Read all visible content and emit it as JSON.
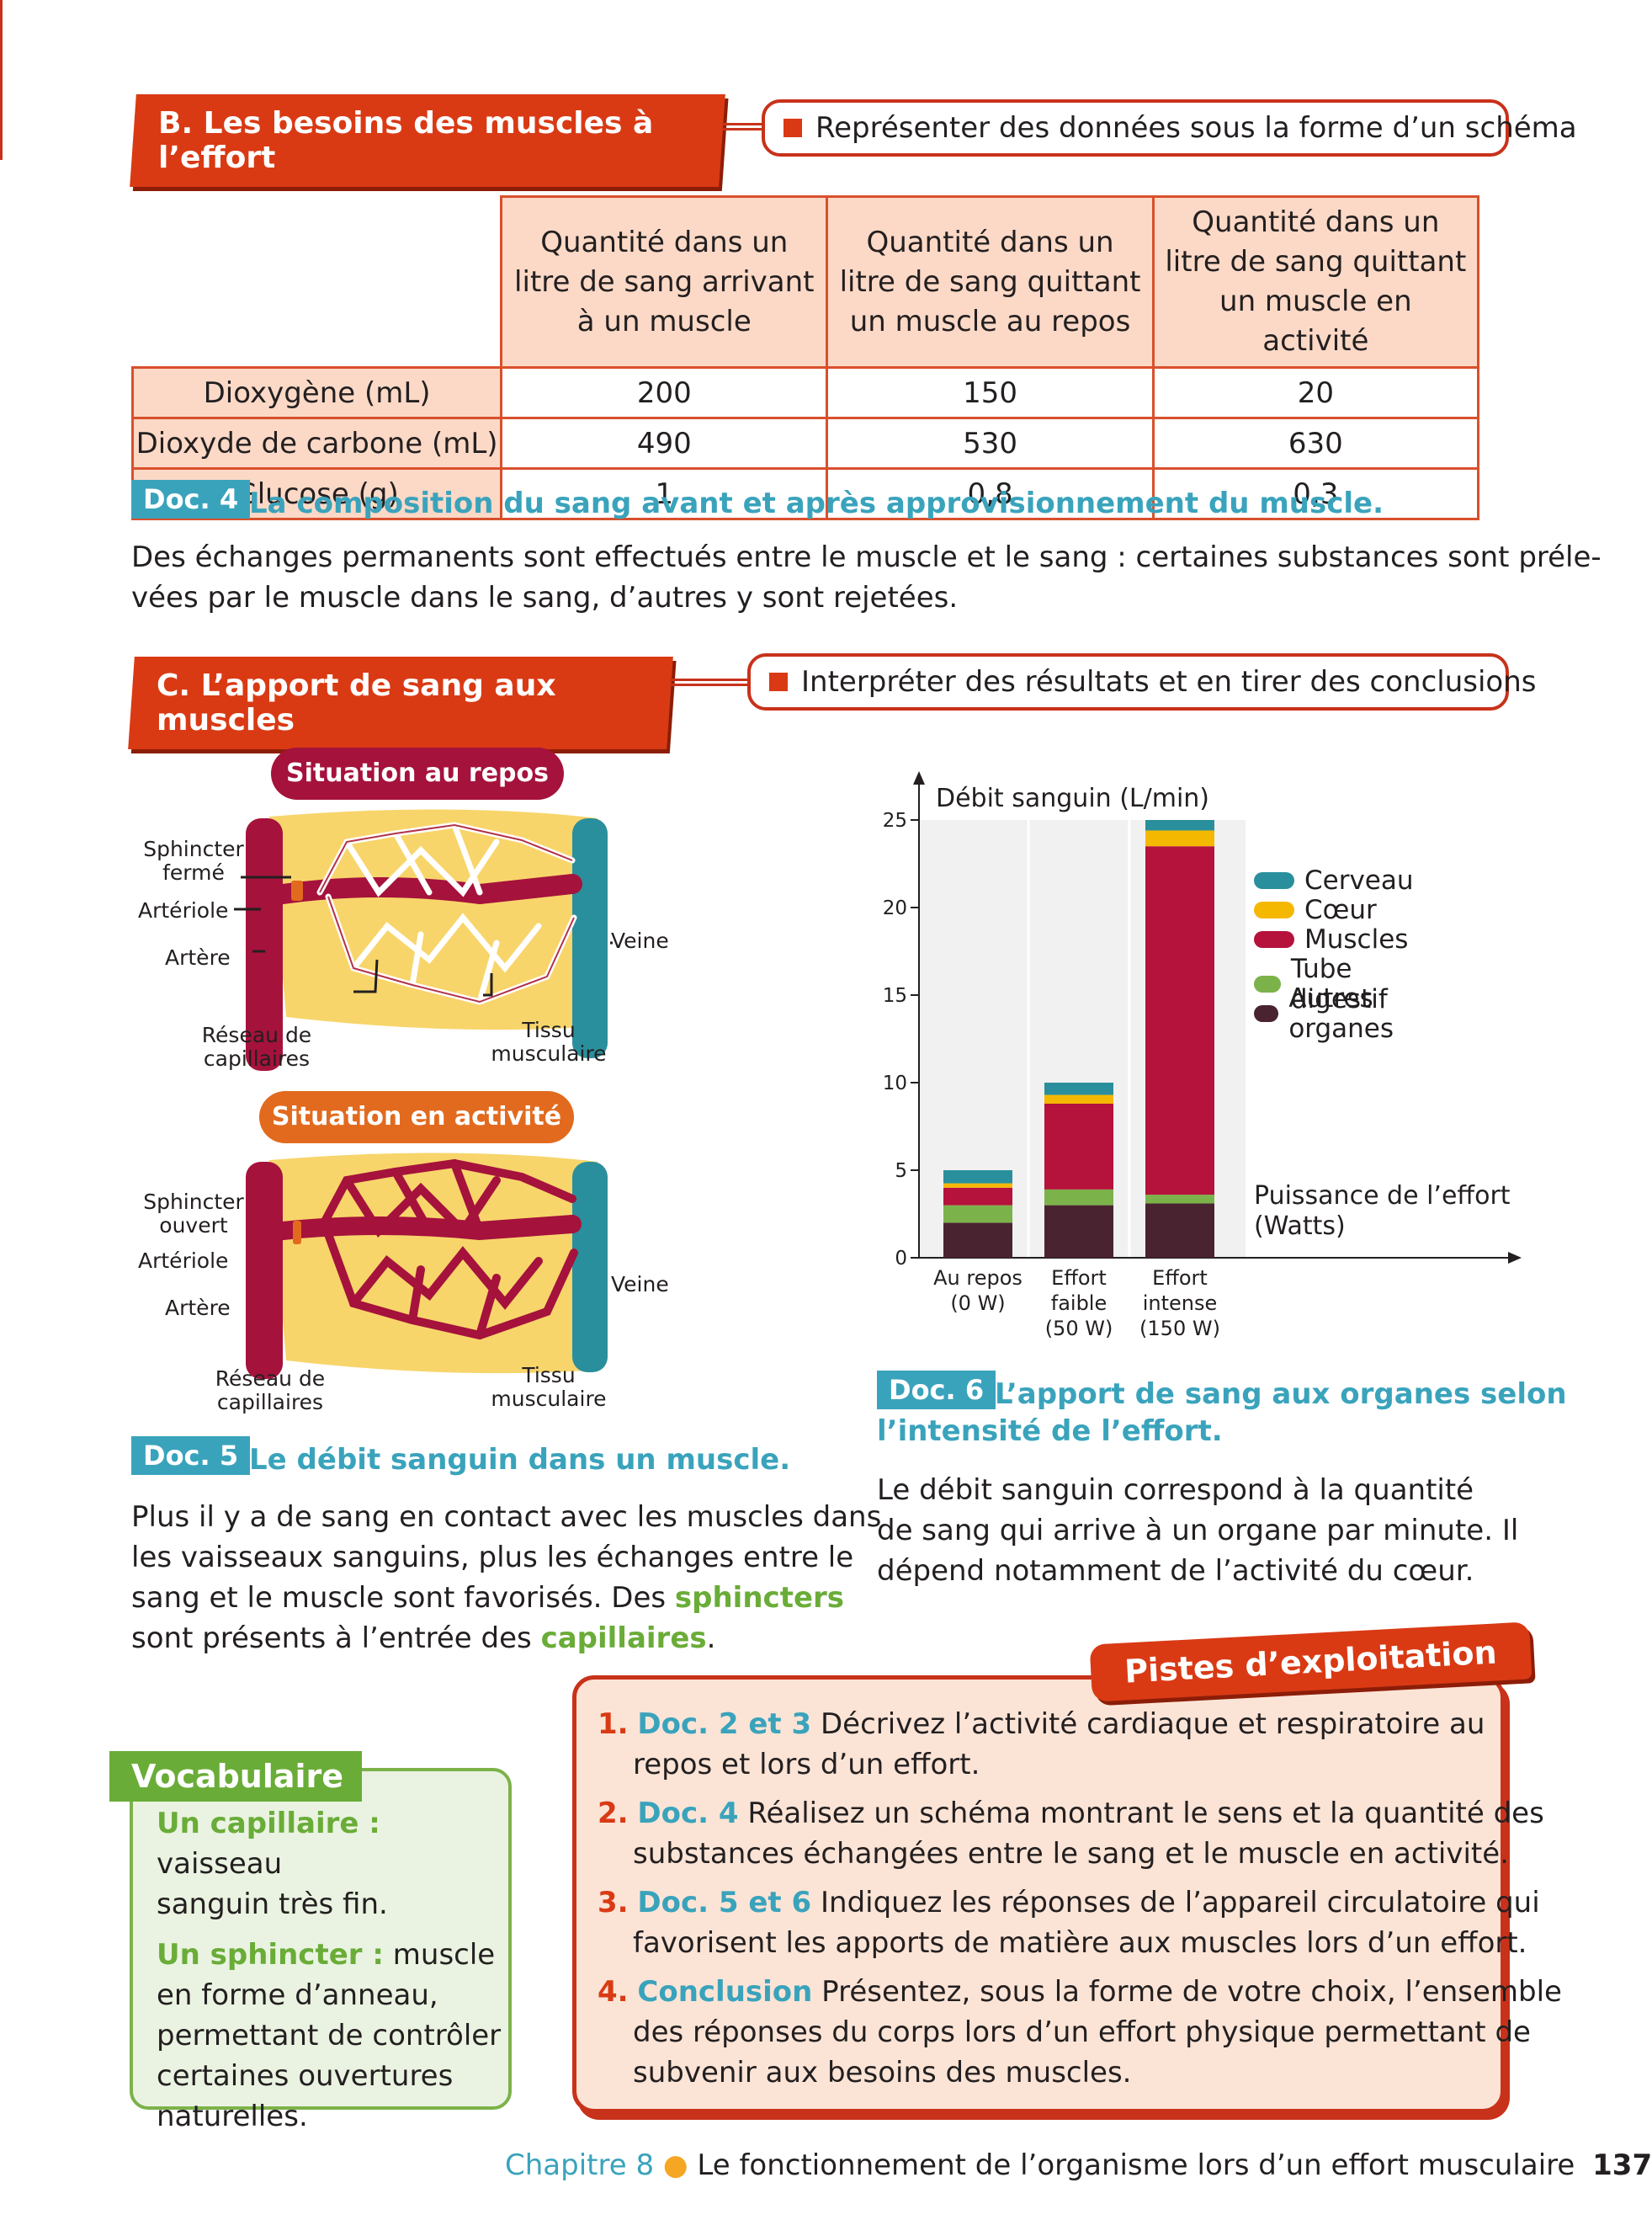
{
  "sectionB": {
    "title": "B. Les besoins des muscles à l’effort",
    "skill": "Représenter des données sous la forme d’un schéma"
  },
  "table": {
    "headers": [
      "Quantité dans un litre de sang arrivant à un muscle",
      "Quantité dans un litre de sang quittant un muscle au repos",
      "Quantité dans un litre de sang quittant un muscle en activité"
    ],
    "rows": [
      {
        "label": "Dioxygène (mL)",
        "values": [
          "200",
          "150",
          "20"
        ]
      },
      {
        "label": "Dioxyde de carbone (mL)",
        "values": [
          "490",
          "530",
          "630"
        ]
      },
      {
        "label": "Glucose (g)",
        "values": [
          "1",
          "0,8",
          "0,3"
        ]
      }
    ]
  },
  "doc4": {
    "tag": "Doc. 4",
    "caption": "La composition du sang avant et après approvisionnement du muscle.",
    "text_line1": "Des échanges permanents sont effectués entre le muscle et le sang : certaines substances sont préle-",
    "text_line2": "vées par le muscle dans le sang, d’autres y sont rejetées."
  },
  "sectionC": {
    "title": "C. L’apport de sang aux muscles",
    "skill": "Interpréter des résultats et en tirer des conclusions"
  },
  "diagram": {
    "rest_title": "Situation au repos",
    "active_title": "Situation en activité",
    "sphincter_closed": "Sphincter fermé",
    "sphincter_open": "Sphincter ouvert",
    "arteriole": "Artériole",
    "artery": "Artère",
    "vein": "Veine",
    "capillaries_rest": "Réseau de capillaires",
    "capillaries_active": "Réseau de capillaires",
    "tissue": "Tissu musculaire"
  },
  "doc5": {
    "tag": "Doc. 5",
    "caption": "Le débit sanguin dans un muscle.",
    "l1": "Plus il y a de sang en contact avec les muscles dans",
    "l2": "les vaisseaux sanguins, plus les échanges entre le",
    "l3a": "sang et le muscle sont favorisés. Des ",
    "l3b": "sphincters",
    "l4a": "sont présents à l’entrée des ",
    "l4b": "capillaires",
    "l4c": "."
  },
  "chart_data": {
    "type": "bar",
    "stacked": true,
    "ylabel": "Débit sanguin (L/min)",
    "xlabel": "Puissance de l’effort (Watts)",
    "ylim": [
      0,
      25
    ],
    "yticks": [
      0,
      5,
      10,
      15,
      20,
      25
    ],
    "categories": [
      [
        "Au repos",
        "(0 W)"
      ],
      [
        "Effort",
        "faible",
        "(50 W)"
      ],
      [
        "Effort",
        "intense",
        "(150 W)"
      ]
    ],
    "series": [
      {
        "name": "Autres organes",
        "color": "#4a2330",
        "values": [
          2.0,
          3.0,
          3.1
        ]
      },
      {
        "name": "Tube digestif",
        "color": "#7cb24a",
        "values": [
          1.0,
          0.9,
          0.5
        ]
      },
      {
        "name": "Muscles",
        "color": "#b5123c",
        "values": [
          1.0,
          4.9,
          19.9
        ]
      },
      {
        "name": "Cœur",
        "color": "#f5b800",
        "values": [
          0.25,
          0.5,
          0.9
        ]
      },
      {
        "name": "Cerveau",
        "color": "#2a8f9c",
        "values": [
          0.75,
          0.7,
          0.6
        ]
      }
    ],
    "legend_order": [
      "Cerveau",
      "Cœur",
      "Muscles",
      "Tube digestif",
      "Autres organes"
    ],
    "legend_position": "right"
  },
  "doc6": {
    "tag": "Doc. 6",
    "caption1": "L’apport de sang aux organes selon",
    "caption2": "l’intensité de l’effort.",
    "l1": "Le débit sanguin correspond à la quantité",
    "l2": "de sang qui arrive à un organe par minute. Il",
    "l3": "dépend notamment de l’activité du cœur."
  },
  "vocab": {
    "title": "Vocabulaire",
    "t1": "Un capillaire :",
    "d1a": " vaisseau",
    "d1b": "sanguin très fin.",
    "t2": "Un sphincter :",
    "d2a": " muscle",
    "d2b": "en forme d’anneau,",
    "d2c": "permettant de contrôler",
    "d2d": "certaines ouvertures",
    "d2e": "naturelles."
  },
  "pistes": {
    "title": "Pistes d’exploitation",
    "items": [
      {
        "num": "1.",
        "ref": "Doc. 2 et 3",
        "l1": " Décrivez l’activité cardiaque et respiratoire au",
        "l2": "repos et lors d’un effort."
      },
      {
        "num": "2.",
        "ref": "Doc. 4",
        "l1": " Réalisez un schéma montrant le sens et la quantité des",
        "l2": "substances échangées entre le sang et le muscle en activité."
      },
      {
        "num": "3.",
        "ref": "Doc. 5 et 6",
        "l1": " Indiquez les réponses de l’appareil circulatoire qui",
        "l2": "favorisent les apports de matière aux muscles lors d’un effort."
      },
      {
        "num": "4.",
        "ref": "Conclusion",
        "l1": " Présentez, sous la forme de votre choix, l’ensemble",
        "l2": "des réponses du corps lors d’un effort physique permettant de",
        "l3": "subvenir aux besoins des muscles."
      }
    ]
  },
  "footer": {
    "chapter": "Chapitre 8",
    "title": "Le fonctionnement de l’organisme lors d’un effort musculaire",
    "page": "137"
  }
}
